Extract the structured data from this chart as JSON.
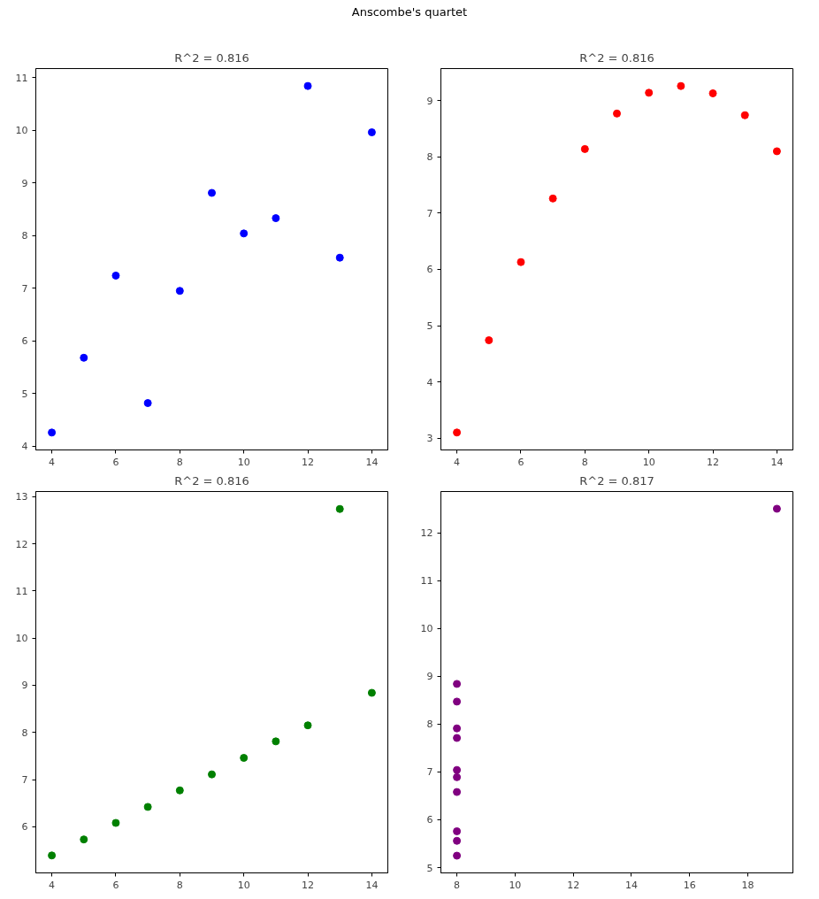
{
  "chart_data": [
    {
      "type": "scatter",
      "title": "R^2 = 0.816",
      "annotations": [
        "Anscombe's quartet"
      ],
      "marker": "circle",
      "x": [
        10,
        8,
        13,
        9,
        11,
        14,
        6,
        4,
        12,
        7,
        5
      ],
      "series": [
        {
          "color": "#0000ff",
          "values": [
            8.04,
            6.95,
            7.58,
            8.81,
            8.33,
            9.96,
            7.24,
            4.26,
            10.84,
            4.82,
            5.68
          ]
        }
      ],
      "xlim": [
        3.5,
        14.5
      ],
      "xticks": [
        4,
        6,
        8,
        10,
        12,
        14
      ],
      "ylim": [
        3.93,
        11.17
      ],
      "yticks": [
        4,
        5,
        6,
        7,
        8,
        9,
        10,
        11
      ]
    },
    {
      "type": "scatter",
      "title": "R^2 = 0.816",
      "marker": "circle",
      "x": [
        10,
        8,
        13,
        9,
        11,
        14,
        6,
        4,
        12,
        7,
        5
      ],
      "series": [
        {
          "color": "#ff0000",
          "values": [
            9.14,
            8.14,
            8.74,
            8.77,
            9.26,
            8.1,
            6.13,
            3.1,
            9.13,
            7.26,
            4.74
          ]
        }
      ],
      "xlim": [
        3.5,
        14.5
      ],
      "xticks": [
        4,
        6,
        8,
        10,
        12,
        14
      ],
      "ylim": [
        2.79,
        9.57
      ],
      "yticks": [
        3,
        4,
        5,
        6,
        7,
        8,
        9
      ]
    },
    {
      "type": "scatter",
      "title": "R^2 = 0.816",
      "marker": "circle",
      "x": [
        10,
        8,
        13,
        9,
        11,
        14,
        6,
        4,
        12,
        7,
        5
      ],
      "series": [
        {
          "color": "#008000",
          "values": [
            7.46,
            6.77,
            12.74,
            7.11,
            7.81,
            8.84,
            6.08,
            5.39,
            8.15,
            6.42,
            5.73
          ]
        }
      ],
      "xlim": [
        3.5,
        14.5
      ],
      "xticks": [
        4,
        6,
        8,
        10,
        12,
        14
      ],
      "ylim": [
        5.02,
        13.11
      ],
      "yticks": [
        6,
        7,
        8,
        9,
        10,
        11,
        12,
        13
      ]
    },
    {
      "type": "scatter",
      "title": "R^2 = 0.817",
      "marker": "circle",
      "x": [
        8,
        8,
        8,
        8,
        8,
        8,
        8,
        19,
        8,
        8,
        8
      ],
      "series": [
        {
          "color": "#800080",
          "values": [
            6.58,
            5.76,
            7.71,
            8.84,
            8.47,
            7.04,
            5.25,
            12.5,
            5.56,
            7.91,
            6.89
          ]
        }
      ],
      "xlim": [
        7.45,
        19.55
      ],
      "xticks": [
        8,
        10,
        12,
        14,
        16,
        18
      ],
      "ylim": [
        4.89,
        12.86
      ],
      "yticks": [
        5,
        6,
        7,
        8,
        9,
        10,
        11,
        12
      ]
    }
  ]
}
